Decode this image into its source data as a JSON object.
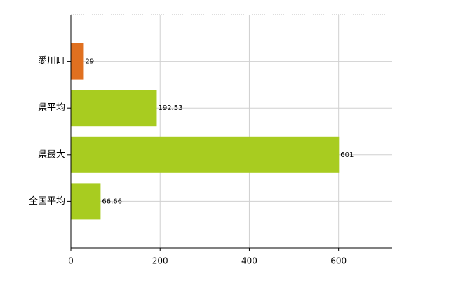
{
  "chart_data": {
    "type": "hbar",
    "categories": [
      "愛川町",
      "県平均",
      "県最大",
      "全国平均"
    ],
    "values": [
      29,
      192.53,
      601,
      66.66
    ],
    "colors": [
      "#e07020",
      "#a8cc20",
      "#a8cc20",
      "#a8cc20"
    ],
    "xlim": [
      0,
      720
    ],
    "xticks": [
      0,
      200,
      400,
      600
    ],
    "grid": true,
    "value_labels_shown": true
  }
}
